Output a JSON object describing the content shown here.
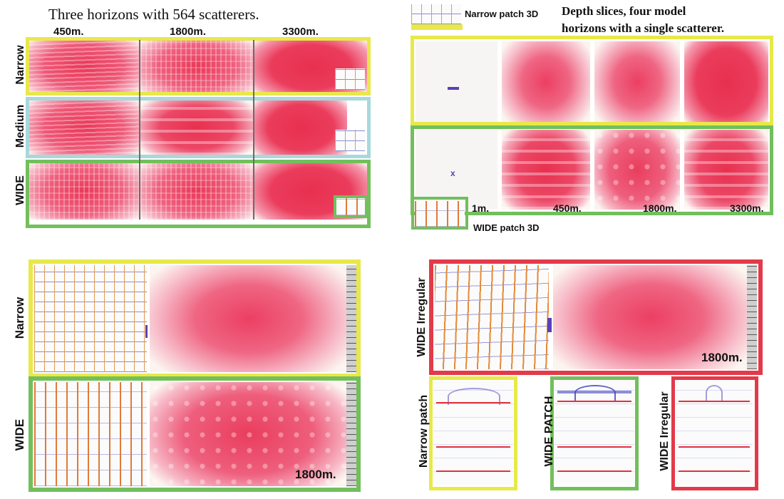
{
  "top_left": {
    "title": "Three horizons with 564 scatterers.",
    "depth_labels": [
      "450m.",
      "1800m.",
      "3300m."
    ],
    "row_labels": [
      "Narrow",
      "Medium",
      "WIDE"
    ]
  },
  "top_right": {
    "title_line1": "Depth slices, four model",
    "title_line2": "horizons with a single scatterer.",
    "narrow_label": "Narrow  patch 3D",
    "wide_label": "WIDE  patch 3D",
    "depth_labels": [
      "1m.",
      "450m.",
      "1800m.",
      "3300m."
    ]
  },
  "bottom_left": {
    "row_labels": [
      "Narrow",
      "WIDE"
    ],
    "depth_label": "1800m."
  },
  "bottom_right": {
    "irregular_label": "WIDE Irregular",
    "depth_label": "1800m.",
    "section_labels": [
      "Narrow patch",
      "WIDE PATCH",
      "WIDE Irregular"
    ]
  },
  "colors": {
    "narrow": "#e8e84a",
    "medium": "#a8d8dc",
    "wide": "#72bf5c",
    "irregular": "#e23a4a",
    "amplitude": "#ec3f62"
  }
}
